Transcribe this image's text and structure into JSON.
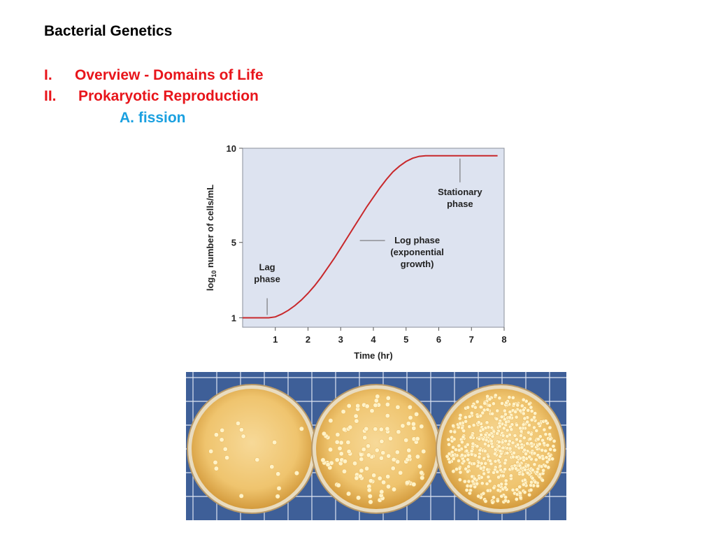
{
  "slide": {
    "title": "Bacterial Genetics",
    "outline": [
      {
        "num": "I.",
        "text": "Overview - Domains of Life"
      },
      {
        "num": "II.",
        "text": "Prokaryotic Reproduction"
      }
    ],
    "subitem": "A. fission"
  },
  "colors": {
    "title": "#000000",
    "outline": "#e8151b",
    "subitem": "#1aa0e0",
    "plot_bg": "#dde3f0",
    "curve": "#c8282b",
    "agar": "#f2c467",
    "grid_bg": "#3e5f98"
  },
  "chart_data": {
    "type": "line",
    "title": "",
    "xlabel": "Time (hr)",
    "ylabel_prefix": "log",
    "ylabel_sub": "10",
    "ylabel_suffix": " number of cells/mL",
    "xlim": [
      0,
      8
    ],
    "ylim": [
      0.5,
      10
    ],
    "xticks": [
      1,
      2,
      3,
      4,
      5,
      6,
      7,
      8
    ],
    "yticks": [
      1,
      5,
      10
    ],
    "grid": false,
    "series": [
      {
        "x": [
          0,
          0.2,
          0.4,
          0.6,
          0.8,
          1.0,
          1.2,
          1.4,
          1.6,
          1.8,
          2.0,
          2.2,
          2.4,
          2.6,
          2.8,
          3.0,
          3.2,
          3.4,
          3.6,
          3.8,
          4.0,
          4.2,
          4.4,
          4.6,
          4.8,
          5.0,
          5.2,
          5.4,
          5.6,
          5.8,
          6.0,
          6.4,
          6.8,
          7.2,
          7.6,
          7.8
        ],
        "y": [
          1.0,
          1.0,
          1.0,
          1.0,
          1.0,
          1.05,
          1.2,
          1.4,
          1.65,
          1.95,
          2.3,
          2.7,
          3.15,
          3.65,
          4.15,
          4.7,
          5.25,
          5.8,
          6.35,
          6.9,
          7.4,
          7.9,
          8.35,
          8.75,
          9.05,
          9.3,
          9.47,
          9.57,
          9.6,
          9.6,
          9.6,
          9.6,
          9.6,
          9.6,
          9.6,
          9.6
        ]
      }
    ],
    "annotations": [
      {
        "lines": [
          "Lag",
          "phase"
        ],
        "x": 0.75,
        "y": 1.0
      },
      {
        "lines": [
          "Log phase",
          "(exponential",
          "growth)"
        ],
        "x": 3.5,
        "y": 5.1
      },
      {
        "lines": [
          "Stationary",
          "phase"
        ],
        "x": 6.65,
        "y": 9.6
      }
    ]
  },
  "photo": {
    "plates": [
      {
        "label": "sparse colonies",
        "density": 20
      },
      {
        "label": "moderate colonies",
        "density": 130
      },
      {
        "label": "dense colonies",
        "density": 600
      }
    ]
  }
}
